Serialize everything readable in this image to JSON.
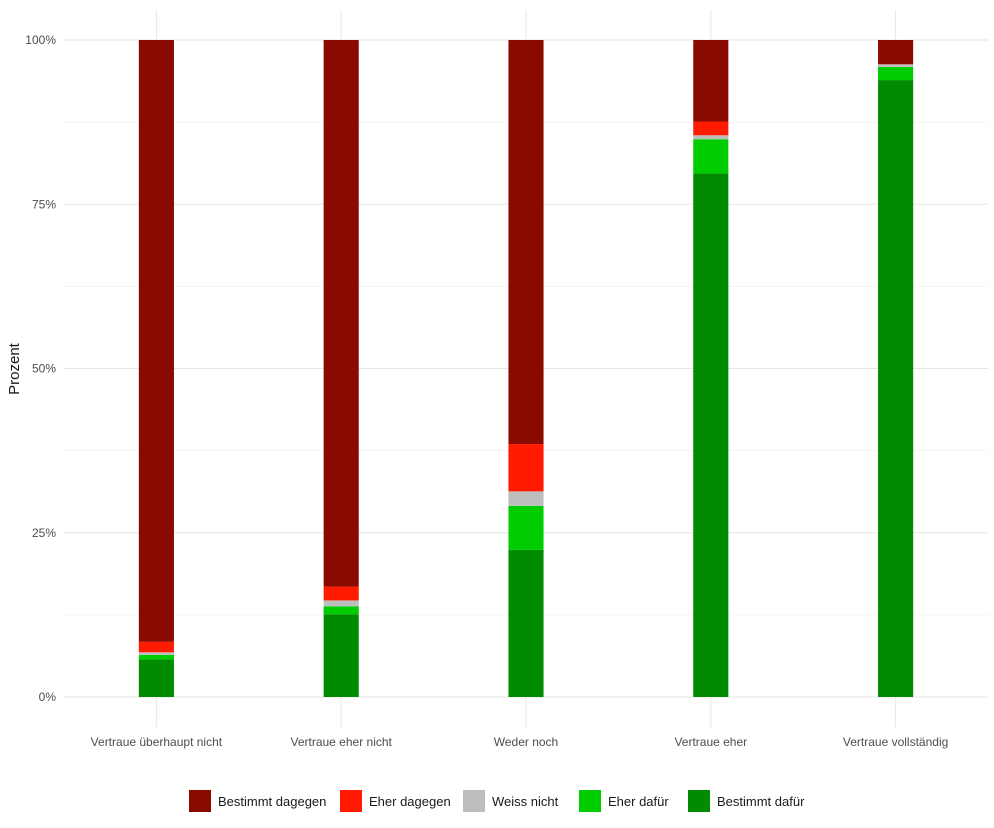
{
  "chart_data": {
    "type": "bar",
    "stacked": true,
    "percent": true,
    "title": "",
    "xlabel": "",
    "ylabel": "Prozent",
    "ylim": [
      0,
      100
    ],
    "y_ticks": [
      "0%",
      "25%",
      "50%",
      "75%",
      "100%"
    ],
    "y_tick_values": [
      0,
      25,
      50,
      75,
      100
    ],
    "grid": true,
    "legend_position": "bottom",
    "categories": [
      "Vertraue überhaupt nicht",
      "Vertraue eher nicht",
      "Weder noch",
      "Vertraue eher",
      "Vertraue vollständig"
    ],
    "series": [
      {
        "name": "Bestimmt dafür",
        "color": "#008B00",
        "values": [
          5.7,
          12.6,
          22.4,
          79.7,
          93.9
        ]
      },
      {
        "name": "Eher dafür",
        "color": "#00CD00",
        "values": [
          0.7,
          1.2,
          6.7,
          5.2,
          2.0
        ]
      },
      {
        "name": "Weiss nicht",
        "color": "#BEBEBE",
        "values": [
          0.4,
          0.9,
          2.2,
          0.6,
          0.4
        ]
      },
      {
        "name": "Eher dagegen",
        "color": "#FF1A00",
        "values": [
          1.6,
          2.1,
          7.2,
          2.1,
          0.0
        ]
      },
      {
        "name": "Bestimmt dagegen",
        "color": "#8B0A00",
        "values": [
          91.6,
          83.2,
          61.5,
          12.4,
          3.7
        ]
      }
    ],
    "legend_order": [
      "Bestimmt dagegen",
      "Eher dagegen",
      "Weiss nicht",
      "Eher dafür",
      "Bestimmt dafür"
    ]
  }
}
